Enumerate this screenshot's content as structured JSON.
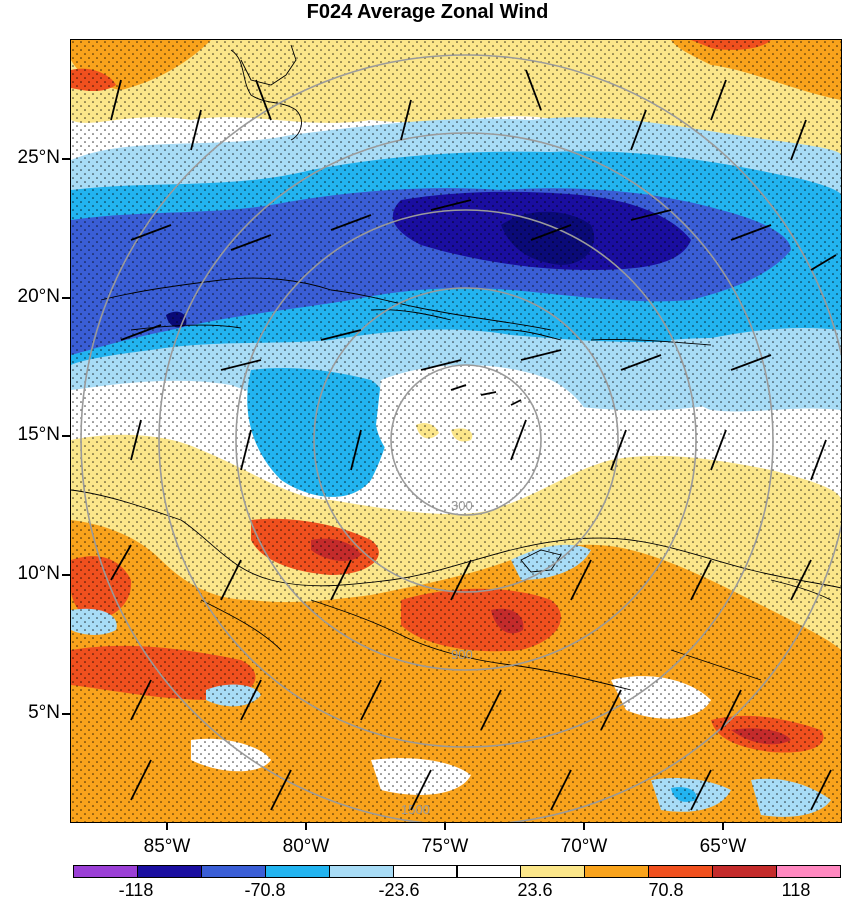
{
  "title": "F024 Average Zonal Wind",
  "colors": {
    "strong_neg": "#1a0ea0",
    "mid_neg": "#3a5ed6",
    "light_neg": "#22b4f0",
    "pale_neg": "#a8dcf6",
    "neutral": "#ffffff",
    "pale_pos": "#fbe68a",
    "light_pos": "#f9a31c",
    "mid_pos": "#f0501e",
    "strong_pos": "#c42b2b",
    "top_pos": "#ff88c0",
    "bottom_neg": "#9b3fd6",
    "range_ring": "#9a9a9a",
    "coast": "#000000"
  },
  "latitude_labels": [
    "25°N",
    "20°N",
    "15°N",
    "10°N",
    "5°N"
  ],
  "longitude_labels": [
    "85°W",
    "80°W",
    "75°W",
    "70°W",
    "65°W"
  ],
  "colorbar": {
    "colors": [
      "#9b3fd6",
      "#1a0ea0",
      "#3a5ed6",
      "#22b4f0",
      "#a8dcf6",
      "#ffffff",
      "#ffffff",
      "#fbe68a",
      "#f9a31c",
      "#f0501e",
      "#c42b2b",
      "#ff88c0"
    ],
    "labels": [
      "-118",
      "-70.8",
      "-23.6",
      "23.6",
      "70.8",
      "118"
    ]
  },
  "range_rings": [
    "300",
    "900",
    "1500"
  ]
}
